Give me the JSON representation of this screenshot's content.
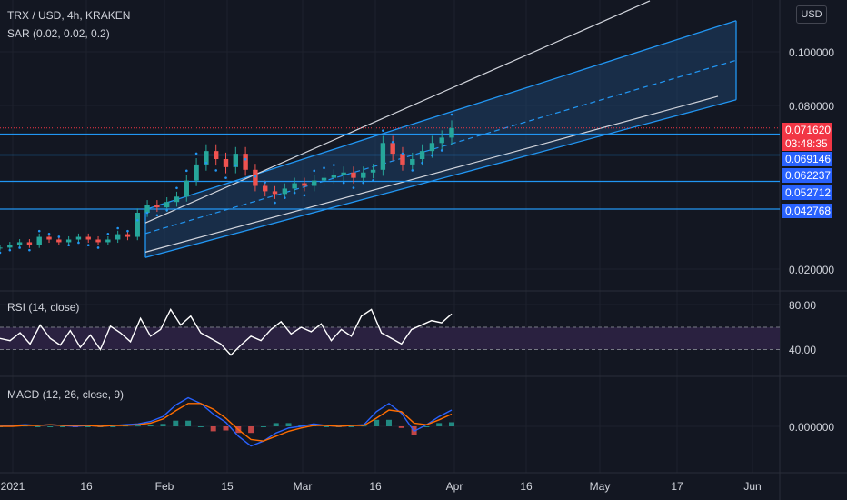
{
  "header": {
    "symbol_line": "TRX / USD, 4h, KRAKEN",
    "sar_line": "SAR (0.02, 0.02, 0.2)",
    "currency_button": "USD"
  },
  "rsi_panel": {
    "label": "RSI (14, close)"
  },
  "macd_panel": {
    "label": "MACD (12, 26, close, 9)"
  },
  "colors": {
    "background": "#131722",
    "channel_line": "#2196f3",
    "channel_fill": "#1e4a78",
    "rsi_band": "#2a2140",
    "macd_line": "#2962ff",
    "signal_line": "#ff6d00",
    "hist_up": "#26a69a",
    "hist_down": "#ef5350",
    "price_label_red": "#f23645",
    "price_label_blue": "#2962ff"
  },
  "chart_data": [
    {
      "type": "candlestick",
      "name": "price",
      "x_ticks": [
        "2021",
        "16",
        "Feb",
        "15",
        "Mar",
        "16",
        "Apr",
        "16",
        "May",
        "17",
        "Jun"
      ],
      "y_ticks": [
        "0.100000",
        "0.080000",
        "0.020000"
      ],
      "current_price": "0.071620",
      "countdown": "03:48:35",
      "horizontal_levels": [
        "0.069146",
        "0.062237",
        "0.052712",
        "0.042768"
      ],
      "approx_closes": [
        0.027,
        0.028,
        0.029,
        0.028,
        0.031,
        0.03,
        0.029,
        0.03,
        0.031,
        0.03,
        0.029,
        0.03,
        0.032,
        0.031,
        0.04,
        0.043,
        0.042,
        0.044,
        0.046,
        0.052,
        0.058,
        0.063,
        0.06,
        0.057,
        0.062,
        0.056,
        0.05,
        0.048,
        0.047,
        0.049,
        0.051,
        0.05,
        0.052,
        0.053,
        0.054,
        0.055,
        0.053,
        0.055,
        0.056,
        0.066,
        0.062,
        0.058,
        0.06,
        0.063,
        0.066,
        0.068,
        0.0716
      ]
    },
    {
      "type": "line",
      "name": "RSI",
      "y_ticks": [
        "80.00",
        "40.00"
      ],
      "band": [
        40,
        60
      ],
      "values": [
        50,
        48,
        55,
        45,
        62,
        50,
        44,
        57,
        42,
        53,
        40,
        61,
        55,
        47,
        68,
        52,
        58,
        76,
        62,
        70,
        55,
        50,
        45,
        35,
        44,
        52,
        48,
        58,
        65,
        54,
        60,
        56,
        63,
        48,
        58,
        52,
        70,
        76,
        55,
        50,
        45,
        58,
        62,
        66,
        64,
        72
      ]
    },
    {
      "type": "line",
      "name": "MACD",
      "y_ticks": [
        "0.000000"
      ],
      "macd": [
        0.0,
        0.0001,
        0.0002,
        0.0001,
        0.0002,
        0.0001,
        0.0,
        0.0001,
        0.0,
        0.0001,
        0.0002,
        0.0003,
        0.0006,
        0.0012,
        0.0026,
        0.0035,
        0.0028,
        0.0015,
        0.0005,
        -0.0012,
        -0.0024,
        -0.0018,
        -0.0008,
        -0.0002,
        0.0,
        0.0003,
        0.0001,
        0.0,
        0.0001,
        0.0002,
        0.0018,
        0.0028,
        0.0016,
        -0.0006,
        0.0002,
        0.0012,
        0.002
      ],
      "signal": [
        0.0,
        0.0,
        0.0001,
        0.0001,
        0.0002,
        0.0001,
        0.0001,
        0.0001,
        0.0,
        0.0001,
        0.0001,
        0.0002,
        0.0004,
        0.0009,
        0.0019,
        0.0028,
        0.0028,
        0.0021,
        0.001,
        -0.0004,
        -0.0016,
        -0.0018,
        -0.0012,
        -0.0006,
        -0.0002,
        0.0001,
        0.0001,
        0.0,
        0.0001,
        0.0001,
        0.001,
        0.002,
        0.0018,
        0.0004,
        0.0002,
        0.0008,
        0.0015
      ]
    }
  ]
}
